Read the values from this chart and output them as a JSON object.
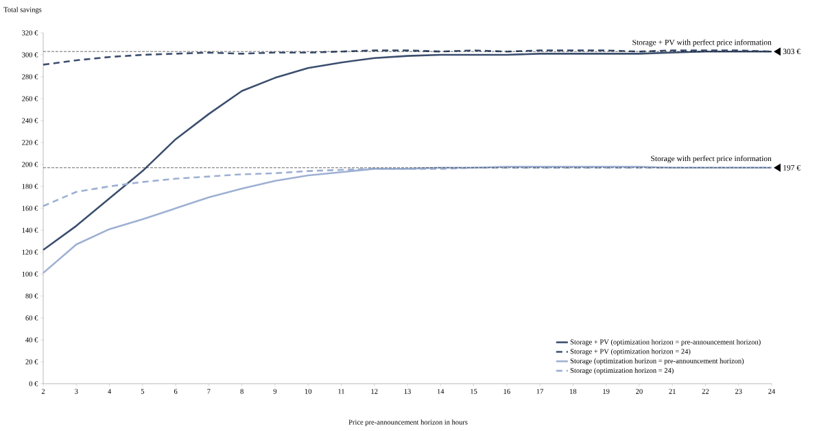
{
  "chart_data": {
    "type": "line",
    "ylabel": "Total savings",
    "xlabel": "Price pre-announcement horizon in hours",
    "x": [
      2,
      3,
      4,
      5,
      6,
      7,
      8,
      9,
      10,
      11,
      12,
      13,
      14,
      15,
      16,
      17,
      18,
      19,
      20,
      21,
      22,
      23,
      24
    ],
    "xlim": [
      2,
      24
    ],
    "xticks": [
      2,
      3,
      4,
      5,
      6,
      7,
      8,
      9,
      10,
      11,
      12,
      13,
      14,
      15,
      16,
      17,
      18,
      19,
      20,
      21,
      22,
      23,
      24
    ],
    "ylim": [
      0,
      320
    ],
    "yticks": [
      {
        "value": 0,
        "label": "0 €"
      },
      {
        "value": 20,
        "label": "20 €"
      },
      {
        "value": 40,
        "label": "40 €"
      },
      {
        "value": 60,
        "label": "60 €"
      },
      {
        "value": 80,
        "label": "80 €"
      },
      {
        "value": 100,
        "label": "100 €"
      },
      {
        "value": 120,
        "label": "120 €"
      },
      {
        "value": 140,
        "label": "140 €"
      },
      {
        "value": 160,
        "label": "160 €"
      },
      {
        "value": 180,
        "label": "180 €"
      },
      {
        "value": 200,
        "label": "200 €"
      },
      {
        "value": 220,
        "label": "220 €"
      },
      {
        "value": 240,
        "label": "240 €"
      },
      {
        "value": 260,
        "label": "260 €"
      },
      {
        "value": 280,
        "label": "280 €"
      },
      {
        "value": 300,
        "label": "300 €"
      },
      {
        "value": 320,
        "label": "320 €"
      }
    ],
    "grid": false,
    "legend": "bottom right",
    "marker": "none",
    "series": [
      {
        "name": "Storage + PV (optimization horizon = pre-announcement horizon)",
        "color": "#3b4e6e",
        "line_style": "solid",
        "values": [
          122,
          144,
          169,
          194,
          223,
          246,
          267,
          279,
          288,
          293,
          297,
          299,
          300,
          300,
          300,
          301,
          301,
          301,
          301,
          302,
          303,
          303,
          303
        ]
      },
      {
        "name": "Storage + PV (optimization horizon = 24)",
        "color": "#3b4e6e",
        "line_style": "dashed",
        "values": [
          291,
          295,
          298,
          300,
          301,
          302,
          301,
          302,
          302,
          303,
          304,
          304,
          303,
          304,
          303,
          304,
          304,
          304,
          303,
          304,
          304,
          304,
          303
        ]
      },
      {
        "name": "Storage (optimization horizon = pre-announcement horizon)",
        "color": "#9db0d3",
        "line_style": "solid",
        "values": [
          101,
          127,
          141,
          150,
          160,
          170,
          178,
          185,
          190,
          193,
          196,
          196,
          197,
          197,
          198,
          198,
          198,
          198,
          198,
          197,
          197,
          197,
          197
        ]
      },
      {
        "name": "Storage (optimization horizon = 24)",
        "color": "#9db0d3",
        "line_style": "dashed",
        "values": [
          162,
          175,
          180,
          184,
          187,
          189,
          191,
          192,
          194,
          195,
          196,
          196,
          196,
          197,
          197,
          197,
          197,
          197,
          197,
          197,
          197,
          197,
          197
        ]
      }
    ],
    "ref_lines": [
      {
        "axis": "y",
        "value": 303,
        "label": "Storage + PV with perfect price information",
        "color": "#000000",
        "line_style": "dashed"
      },
      {
        "axis": "y",
        "value": 197,
        "label": "Storage with perfect price information",
        "color": "#000000",
        "line_style": "dashed"
      }
    ],
    "annotations": [
      {
        "text": "303 €",
        "x": 24,
        "y": 303
      },
      {
        "text": "197 €",
        "x": 24,
        "y": 197
      }
    ]
  }
}
